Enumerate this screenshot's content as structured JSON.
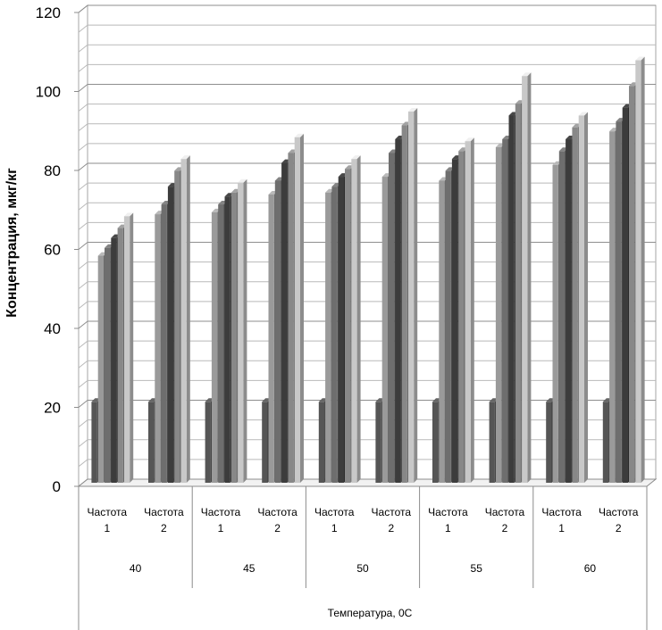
{
  "chart_data": {
    "type": "bar",
    "style": "3d-clustered",
    "xlabel": "Температура, 0С",
    "ylabel": "Концентрация, мкг/кг",
    "ylim": [
      0,
      120
    ],
    "yticks": [
      0,
      20,
      40,
      60,
      80,
      100,
      120
    ],
    "grid": true,
    "groups": [
      {
        "label": "40",
        "categories": [
          {
            "label": [
              "Частота",
              "1"
            ],
            "values": [
              20.5,
              57.5,
              59.5,
              62,
              64.5,
              67.5
            ]
          },
          {
            "label": [
              "Частота",
              "2"
            ],
            "values": [
              20.5,
              68,
              70.5,
              75,
              79,
              82
            ]
          }
        ]
      },
      {
        "label": "45",
        "categories": [
          {
            "label": [
              "Частота",
              "1"
            ],
            "values": [
              20.5,
              68.5,
              70.5,
              72.5,
              73.5,
              76
            ]
          },
          {
            "label": [
              "Частота",
              "2"
            ],
            "values": [
              20.5,
              73,
              76.5,
              81,
              83.5,
              87.5
            ]
          }
        ]
      },
      {
        "label": "50",
        "categories": [
          {
            "label": [
              "Частота",
              "1"
            ],
            "values": [
              20.5,
              73.5,
              75,
              77.5,
              79.5,
              82
            ]
          },
          {
            "label": [
              "Частота",
              "2"
            ],
            "values": [
              20.5,
              77.5,
              83.5,
              87,
              90.5,
              94
            ]
          }
        ]
      },
      {
        "label": "55",
        "categories": [
          {
            "label": [
              "Частота",
              "1"
            ],
            "values": [
              20.5,
              76.5,
              79,
              82,
              84,
              86.5
            ]
          },
          {
            "label": [
              "Частота",
              "2"
            ],
            "values": [
              20.5,
              85,
              87,
              93,
              96,
              103
            ]
          }
        ]
      },
      {
        "label": "60",
        "categories": [
          {
            "label": [
              "Частота",
              "1"
            ],
            "values": [
              20.5,
              80.5,
              84,
              87,
              90,
              93
            ]
          },
          {
            "label": [
              "Частота",
              "2"
            ],
            "values": [
              20.5,
              89,
              91.5,
              95,
              100.5,
              107
            ]
          }
        ]
      }
    ],
    "colors": {
      "series": [
        "#555555",
        "#9a9a9a",
        "#6e6e6e",
        "#3c3c3c",
        "#888888",
        "#c8c8c8"
      ],
      "grid": "#a6a6a6",
      "axis": "#8c8c8c"
    }
  }
}
